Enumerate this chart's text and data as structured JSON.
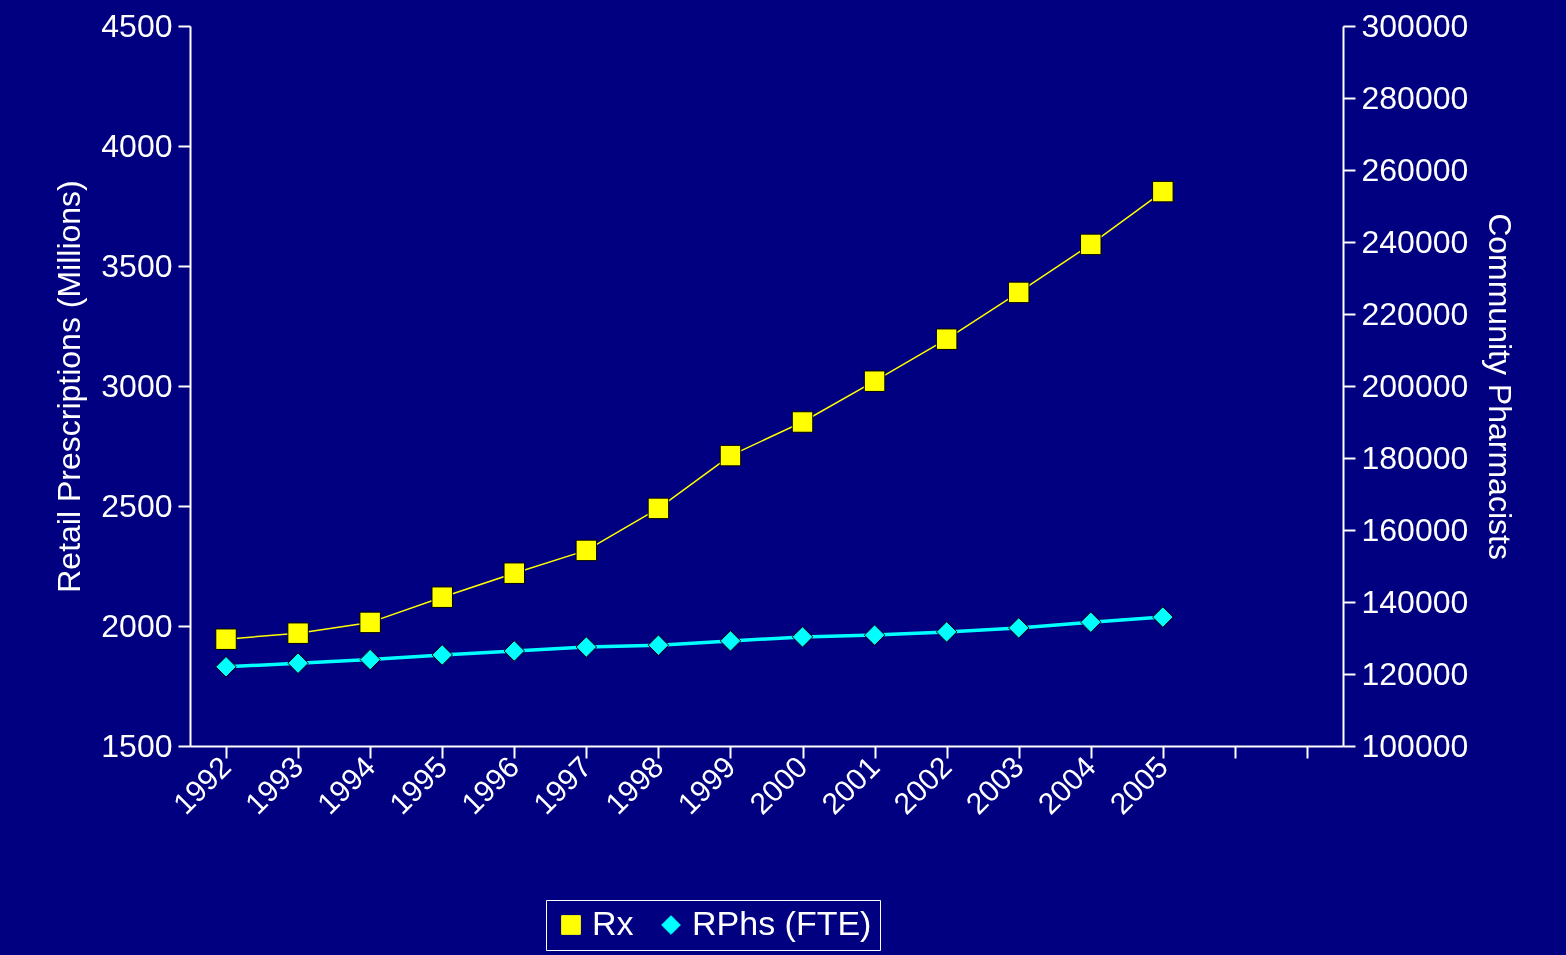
{
  "chart_data": {
    "type": "line",
    "categories": [
      "1992",
      "1993",
      "1994",
      "1995",
      "1996",
      "1997",
      "1998",
      "1999",
      "2000",
      "2001",
      "2002",
      "2003",
      "2004",
      "2005",
      null,
      null
    ],
    "ylabel": "Retail Prescriptions (Millions)",
    "y2label": "Community Pharmacists",
    "ylim": [
      1500,
      4500
    ],
    "yticks": [
      1500,
      2000,
      2500,
      3000,
      3500,
      4000,
      4500
    ],
    "y2lim": [
      100000,
      300000
    ],
    "y2ticks": [
      100000,
      120000,
      140000,
      160000,
      180000,
      200000,
      220000,
      240000,
      260000,
      280000,
      300000
    ],
    "grid": false,
    "legend": "bottom",
    "series": [
      {
        "name": "Rx",
        "color": "#ffff00",
        "marker": "square",
        "values": [
          1945,
          1970,
          2015,
          2120,
          2220,
          2315,
          2490,
          2710,
          2850,
          3020,
          3195,
          3390,
          3590,
          3810,
          null,
          null
        ]
      },
      {
        "name": "RPhs (FTE)",
        "color": "#00ffff",
        "marker": "diamond",
        "axis": "y2",
        "values": [
          122000,
          123000,
          124000,
          125300,
          126400,
          127500,
          128000,
          129200,
          130300,
          130800,
          131700,
          132800,
          134400,
          135800,
          null,
          null
        ]
      }
    ]
  }
}
